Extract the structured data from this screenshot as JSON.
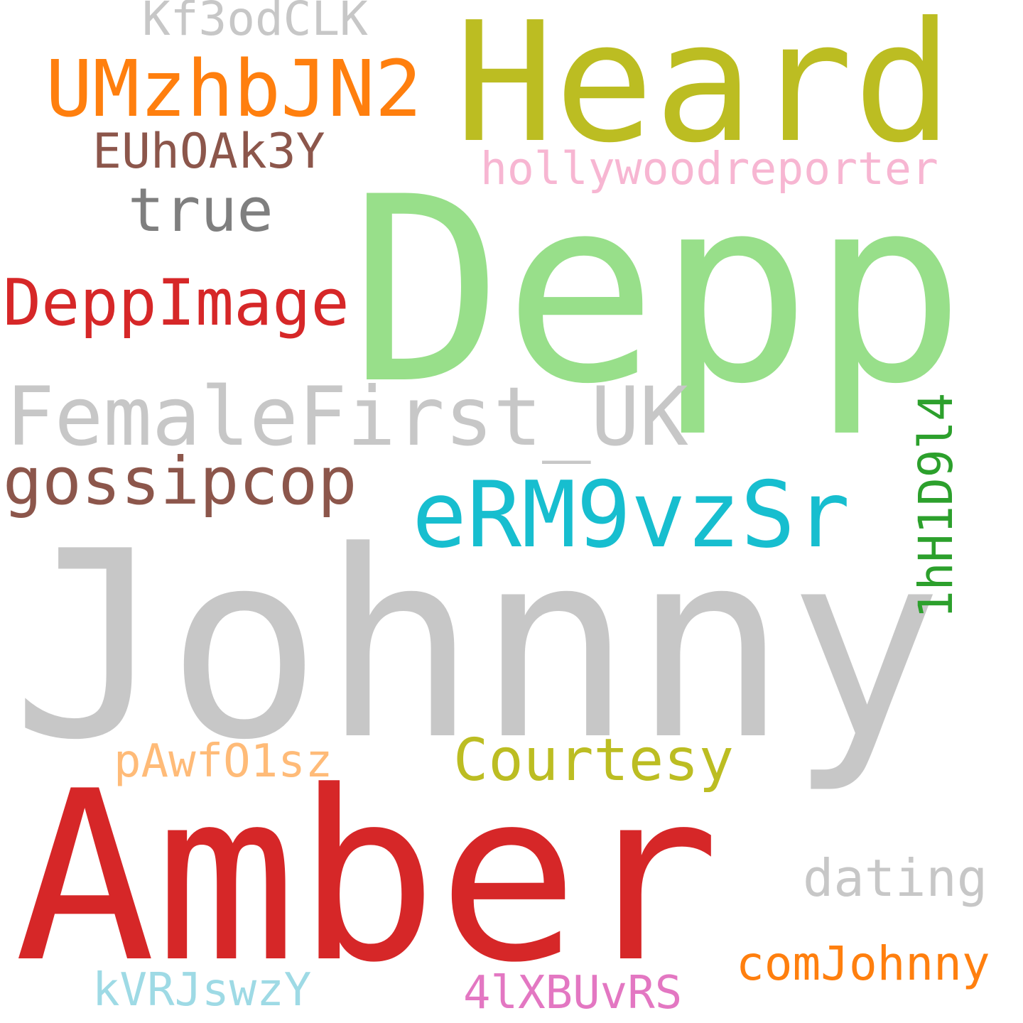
{
  "words": [
    {
      "text": "Johnny",
      "color": "#c7c7c7"
    },
    {
      "text": "Amber",
      "color": "#d62728"
    },
    {
      "text": "Depp",
      "color": "#98df8a"
    },
    {
      "text": "Heard",
      "color": "#bcbd22"
    },
    {
      "text": "FemaleFirst_UK",
      "color": "#c7c7c7"
    },
    {
      "text": "eRM9vzSr",
      "color": "#17becf"
    },
    {
      "text": "UMzhbJN2",
      "color": "#ff7f0e"
    },
    {
      "text": "DeppImage",
      "color": "#d62728"
    },
    {
      "text": "gossipcop",
      "color": "#8c564b"
    },
    {
      "text": "hollywoodreporter",
      "color": "#f7b6d2"
    },
    {
      "text": "Courtesy",
      "color": "#bcbd22"
    },
    {
      "text": "true",
      "color": "#7f7f7f"
    },
    {
      "text": "EUhOAk3Y",
      "color": "#8c564b"
    },
    {
      "text": "Kf3odCLK",
      "color": "#c7c7c7"
    },
    {
      "text": "1hH1D9l4",
      "color": "#2ca02c"
    },
    {
      "text": "pAwfO1sz",
      "color": "#ffbb78"
    },
    {
      "text": "dating",
      "color": "#c7c7c7"
    },
    {
      "text": "comJohnny",
      "color": "#ff7f0e"
    },
    {
      "text": "kVRJswzY",
      "color": "#9edae5"
    },
    {
      "text": "4lXBUvRS",
      "color": "#e377c2"
    }
  ]
}
